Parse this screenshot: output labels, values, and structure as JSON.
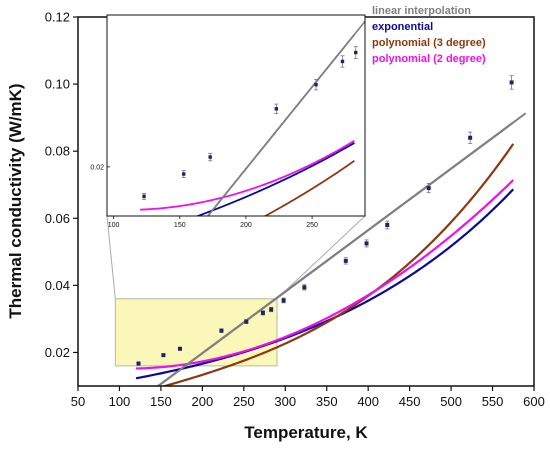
{
  "chart_data": {
    "type": "line",
    "xlabel": "Temperature, K",
    "ylabel": "Thermal conductivity (W/mK)",
    "xlim": [
      50,
      600
    ],
    "ylim": [
      0.01,
      0.12
    ],
    "xticks": [
      50,
      100,
      150,
      200,
      250,
      300,
      350,
      400,
      450,
      500,
      550,
      600
    ],
    "yticks": [
      0.02,
      0.04,
      0.06,
      0.08,
      0.1,
      0.12
    ],
    "xtick_labels": [
      "50",
      "100",
      "150",
      "200",
      "250",
      "300",
      "350",
      "400",
      "450",
      "500",
      "550",
      "600"
    ],
    "ytick_labels": [
      "0.02",
      "0.04",
      "0.06",
      "0.08",
      "0.10",
      "0.12"
    ],
    "legend_position": "top-right",
    "measured": {
      "x": [
        123,
        153,
        173,
        223,
        253,
        273,
        283,
        298,
        323,
        373,
        398,
        423,
        473,
        523,
        573
      ],
      "y": [
        0.0167,
        0.0192,
        0.0211,
        0.0265,
        0.0292,
        0.0318,
        0.0328,
        0.0355,
        0.0394,
        0.0473,
        0.0525,
        0.058,
        0.069,
        0.084,
        0.1005
      ]
    },
    "series": [
      {
        "name": "linear interpolation",
        "color": "#808080",
        "fit": "linear",
        "coef": [
          -0.0169,
          0.0001834
        ]
      },
      {
        "name": "exponential",
        "color": "#0a0a9a",
        "fit": "exponential",
        "coef": [
          0.0114,
          0.00378
        ]
      },
      {
        "name": "polynomial (3 degree)",
        "color": "#8b3a0f",
        "fit": "polynomial",
        "coef": [
          0.0061,
          7.15e-05,
          -3.9e-08,
          4.75e-10
        ]
      },
      {
        "name": "polynomial (2 degree)",
        "color": "#ee10ee",
        "fit": "polynomial",
        "coef": [
          0.0152,
          -4.7e-06,
          2.59e-07
        ]
      }
    ],
    "zoom_box": {
      "x": [
        95,
        290
      ],
      "y": [
        0.016,
        0.036
      ]
    },
    "inset": {
      "xlim": [
        95,
        290
      ],
      "ylim": [
        0.0145,
        0.037
      ],
      "xticks": [
        100,
        150,
        200,
        250
      ],
      "xtick_labels": [
        "100",
        "150",
        "200",
        "250"
      ],
      "yticks": [
        0.02
      ],
      "ytick_labels": [
        "0.02"
      ]
    }
  }
}
